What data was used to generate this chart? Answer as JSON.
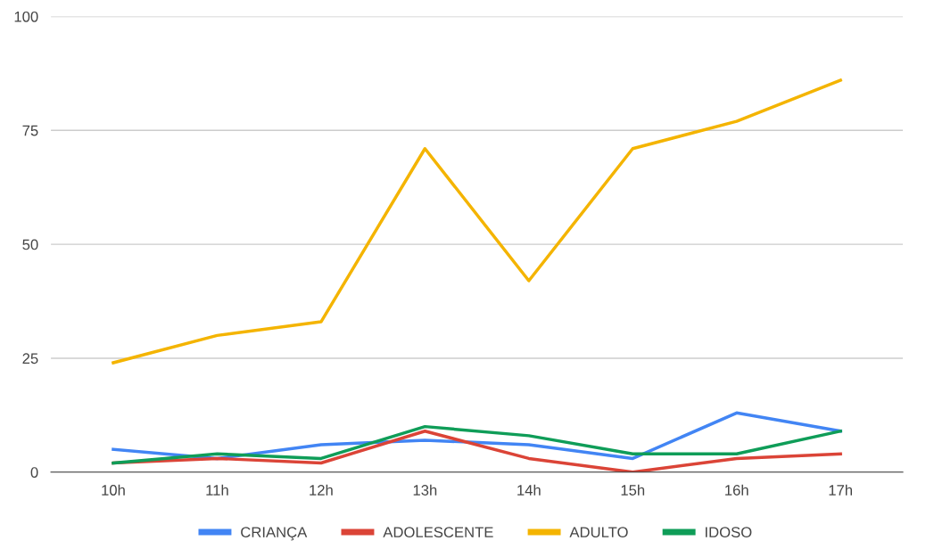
{
  "chart_data": {
    "type": "line",
    "categories": [
      "10h",
      "11h",
      "12h",
      "13h",
      "14h",
      "15h",
      "16h",
      "17h"
    ],
    "series": [
      {
        "name": "CRIANÇA",
        "color": "#4285f4",
        "values": [
          5,
          3,
          6,
          7,
          6,
          3,
          13,
          9
        ]
      },
      {
        "name": "ADOLESCENTE",
        "color": "#db4437",
        "values": [
          2,
          3,
          2,
          9,
          3,
          0,
          3,
          4
        ]
      },
      {
        "name": "ADULTO",
        "color": "#f4b400",
        "values": [
          24,
          30,
          33,
          71,
          42,
          71,
          77,
          86
        ]
      },
      {
        "name": "IDOSO",
        "color": "#0f9d58",
        "values": [
          2,
          4,
          3,
          10,
          8,
          4,
          4,
          9
        ]
      }
    ],
    "ylim": [
      0,
      100
    ],
    "yticks": [
      0,
      25,
      50,
      75,
      100
    ],
    "grid": "y",
    "legend": "bottom",
    "marker": "none",
    "line_style": "solid"
  }
}
